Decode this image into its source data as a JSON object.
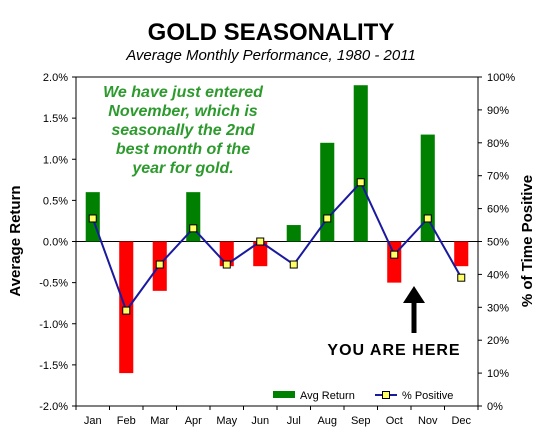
{
  "chart_data": {
    "type": "bar",
    "title": "GOLD SEASONALITY",
    "subtitle": "Average Monthly Performance, 1980 - 2011",
    "categories": [
      "Jan",
      "Feb",
      "Mar",
      "Apr",
      "May",
      "Jun",
      "Jul",
      "Aug",
      "Sep",
      "Oct",
      "Nov",
      "Dec"
    ],
    "series": [
      {
        "name": "Avg Return",
        "chart": "bar",
        "axis": "left",
        "values": [
          0.6,
          -1.6,
          -0.6,
          0.6,
          -0.3,
          -0.3,
          0.2,
          1.2,
          1.9,
          -0.5,
          1.3,
          -0.3
        ],
        "positive_color": "#008000",
        "negative_color": "#ff0000"
      },
      {
        "name": "% Positive",
        "chart": "line",
        "axis": "right",
        "values": [
          57,
          29,
          43,
          54,
          43,
          50,
          43,
          57,
          68,
          46,
          57,
          39
        ],
        "line_color": "#1a1aa0",
        "marker_color": "#ffff66"
      }
    ],
    "ylabel": "Average Return",
    "y2label": "% of Time Positive",
    "ylim": [
      -2.0,
      2.0
    ],
    "y2lim": [
      0,
      100
    ],
    "yticks": [
      "2.0%",
      "1.5%",
      "1.0%",
      "0.5%",
      "0.0%",
      "-0.5%",
      "-1.0%",
      "-1.5%",
      "-2.0%"
    ],
    "y2ticks": [
      "100%",
      "90%",
      "80%",
      "70%",
      "60%",
      "50%",
      "40%",
      "30%",
      "20%",
      "10%",
      "0%"
    ],
    "grid": false,
    "legend": "bottom-right",
    "annotations": [
      "We have just entered",
      "November, which is",
      "seasonally the 2nd",
      "best month of the",
      "year for gold."
    ],
    "callout": "YOU ARE HERE"
  }
}
